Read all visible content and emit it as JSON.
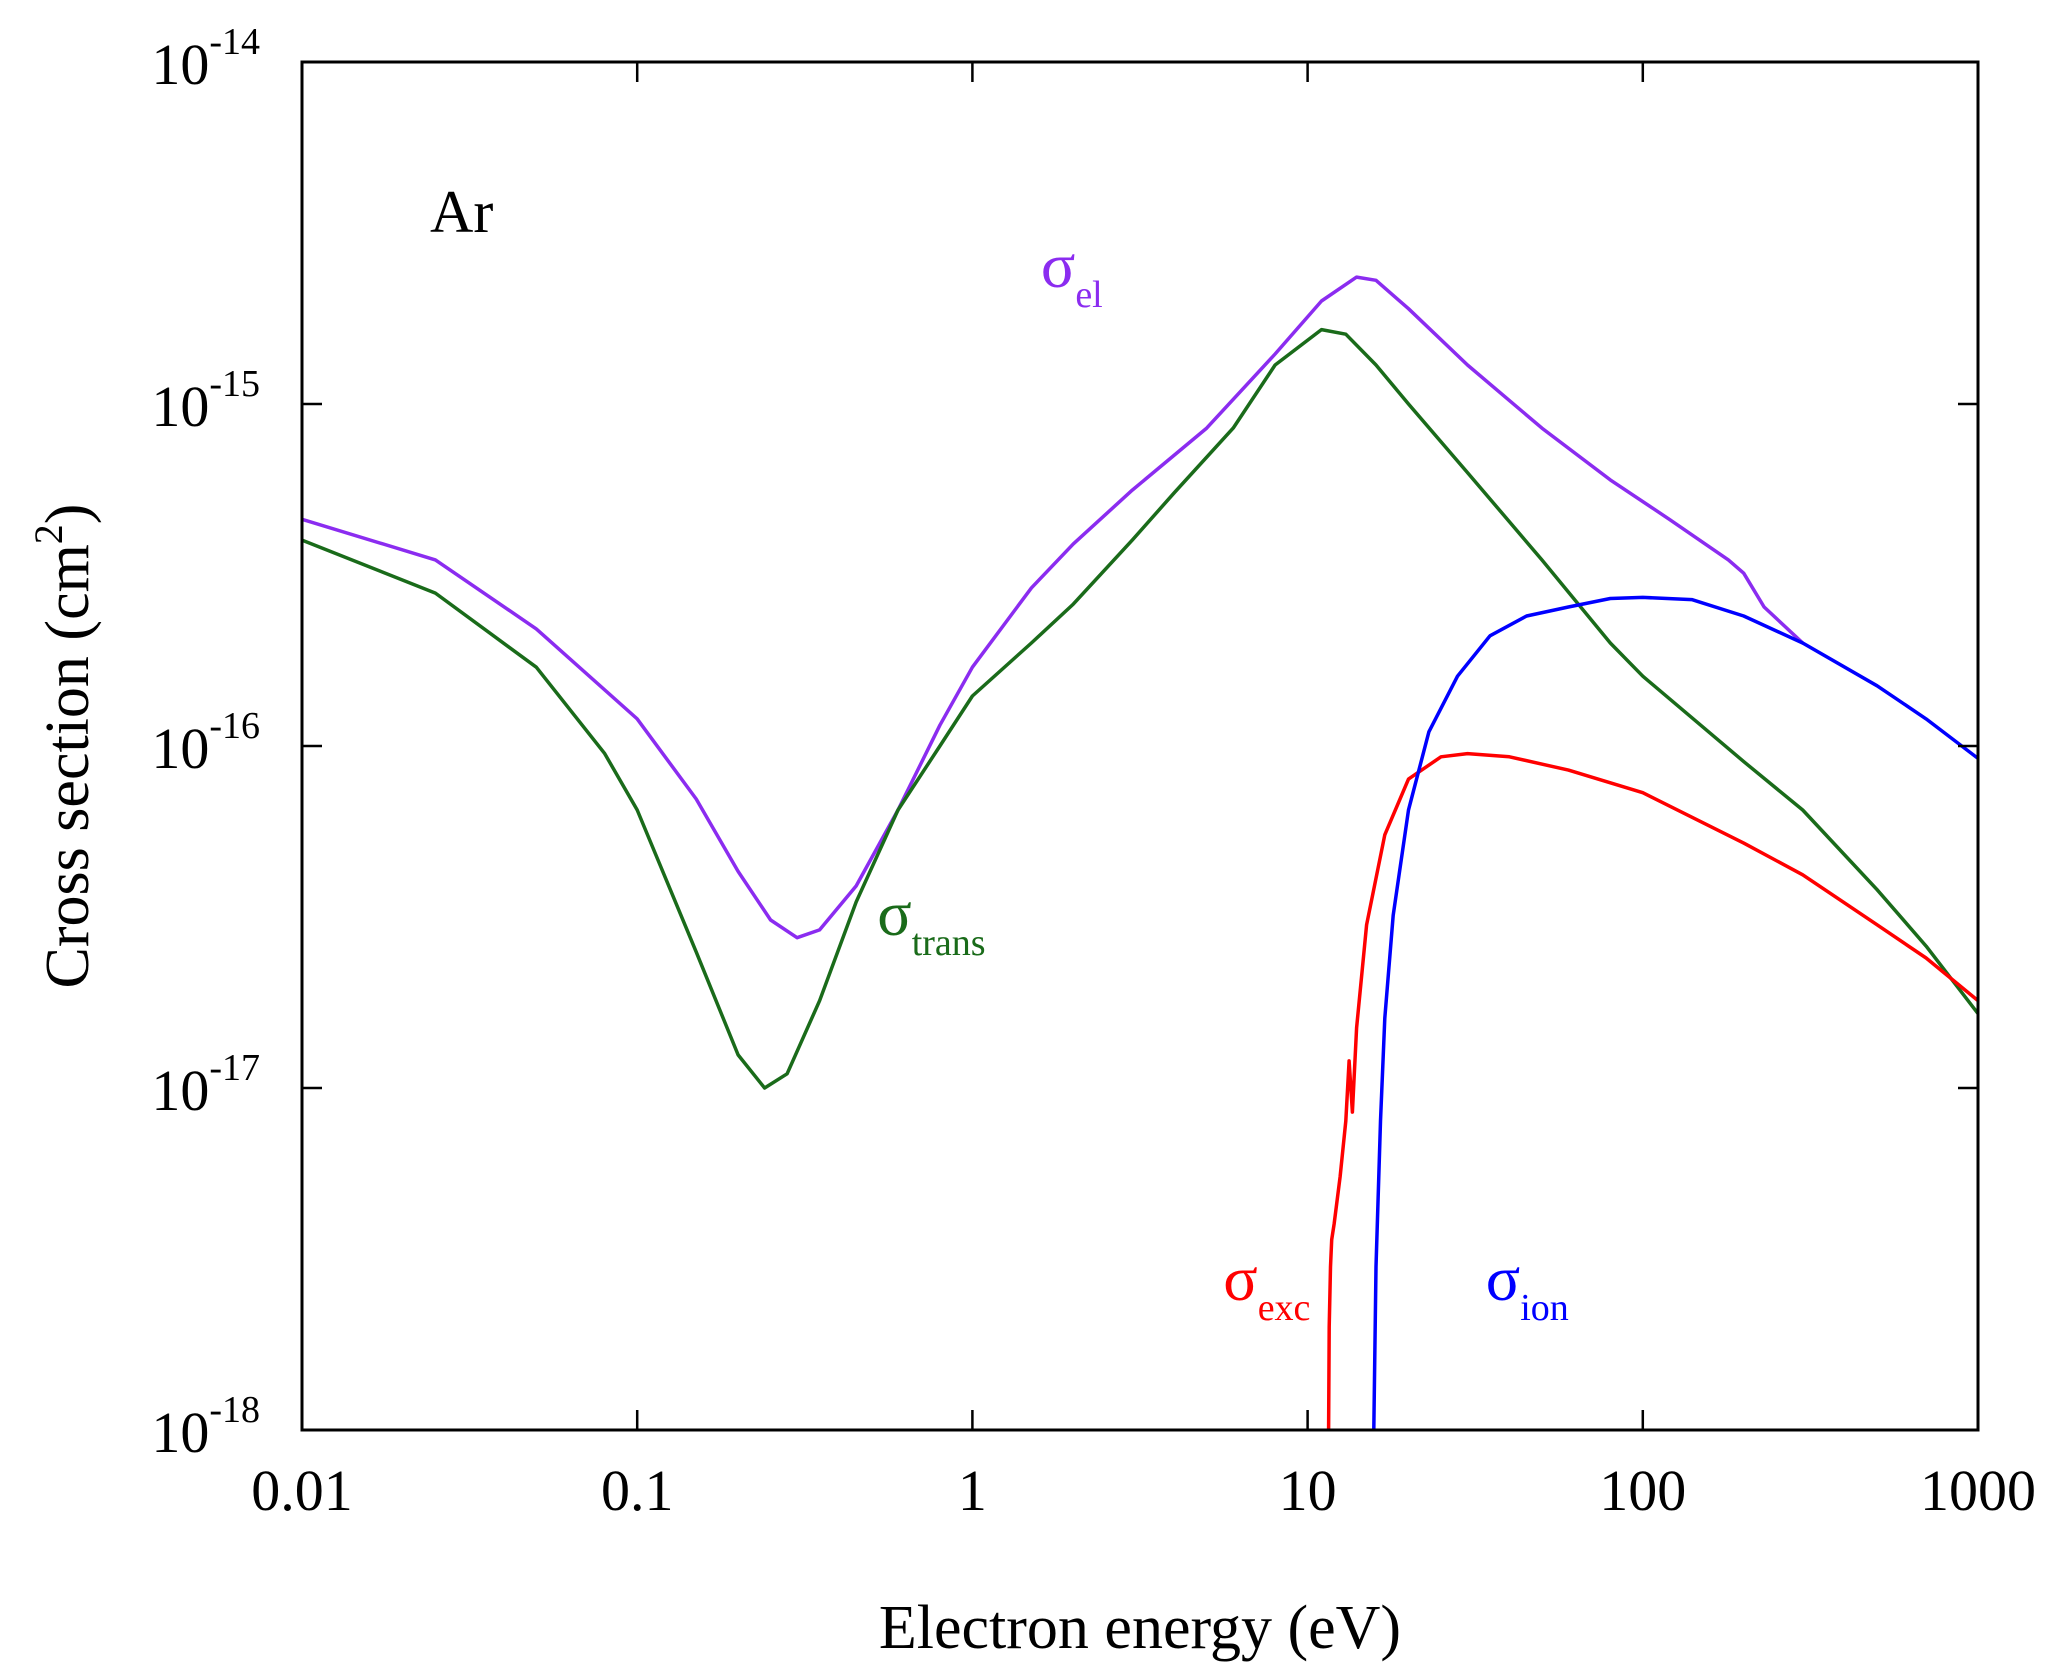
{
  "chart_data": {
    "type": "line",
    "title": "",
    "annotation": "Ar",
    "xlabel": "Electron energy (eV)",
    "ylabel": {
      "main": "Cross section (cm",
      "sup": "2",
      "close": ")"
    },
    "xscale": "log",
    "yscale": "log",
    "xlim": [
      0.01,
      1000
    ],
    "ylim": [
      1e-18,
      1e-14
    ],
    "grid": false,
    "x_ticks": [
      {
        "value": 0.01,
        "label": "0.01"
      },
      {
        "value": 0.1,
        "label": "0.1"
      },
      {
        "value": 1,
        "label": "1"
      },
      {
        "value": 10,
        "label": "10"
      },
      {
        "value": 100,
        "label": "100"
      },
      {
        "value": 1000,
        "label": "1000"
      }
    ],
    "y_ticks": [
      {
        "value": 1e-18,
        "base": "10",
        "exp": "-18"
      },
      {
        "value": 1e-17,
        "base": "10",
        "exp": "-17"
      },
      {
        "value": 1e-16,
        "base": "10",
        "exp": "-16"
      },
      {
        "value": 1e-15,
        "base": "10",
        "exp": "-15"
      },
      {
        "value": 1e-14,
        "base": "10",
        "exp": "-14"
      }
    ],
    "series": [
      {
        "name": "el",
        "symbol": "σ",
        "subscript": "el",
        "color": "#8b2cf0",
        "label_anchor": [
          1.6,
          2.2e-15
        ],
        "points": [
          [
            0.01,
            4.6e-16
          ],
          [
            0.025,
            3.5e-16
          ],
          [
            0.05,
            2.2e-16
          ],
          [
            0.1,
            1.2e-16
          ],
          [
            0.15,
            7e-17
          ],
          [
            0.2,
            4.3e-17
          ],
          [
            0.25,
            3.1e-17
          ],
          [
            0.3,
            2.75e-17
          ],
          [
            0.35,
            2.9e-17
          ],
          [
            0.45,
            3.9e-17
          ],
          [
            0.6,
            6.5e-17
          ],
          [
            0.8,
            1.15e-16
          ],
          [
            1.0,
            1.7e-16
          ],
          [
            1.5,
            2.9e-16
          ],
          [
            2,
            3.9e-16
          ],
          [
            3,
            5.6e-16
          ],
          [
            5,
            8.5e-16
          ],
          [
            8,
            1.4e-15
          ],
          [
            11,
            2e-15
          ],
          [
            14,
            2.35e-15
          ],
          [
            16,
            2.3e-15
          ],
          [
            20,
            1.9e-15
          ],
          [
            30,
            1.3e-15
          ],
          [
            50,
            8.5e-16
          ],
          [
            80,
            6e-16
          ],
          [
            120,
            4.6e-16
          ],
          [
            180,
            3.5e-16
          ],
          [
            200,
            3.2e-16
          ],
          [
            230,
            2.55e-16
          ],
          [
            300,
            2e-16
          ]
        ]
      },
      {
        "name": "trans",
        "symbol": "σ",
        "subscript": "trans",
        "color": "#1a6b1a",
        "label_anchor": [
          0.52,
          2.8e-17
        ],
        "points": [
          [
            0.01,
            4e-16
          ],
          [
            0.025,
            2.8e-16
          ],
          [
            0.05,
            1.7e-16
          ],
          [
            0.08,
            9.5e-17
          ],
          [
            0.1,
            6.5e-17
          ],
          [
            0.15,
            2.5e-17
          ],
          [
            0.2,
            1.25e-17
          ],
          [
            0.24,
            1e-17
          ],
          [
            0.28,
            1.1e-17
          ],
          [
            0.35,
            1.8e-17
          ],
          [
            0.45,
            3.5e-17
          ],
          [
            0.6,
            6.5e-17
          ],
          [
            0.8,
            1e-16
          ],
          [
            1.0,
            1.4e-16
          ],
          [
            1.5,
            2e-16
          ],
          [
            2,
            2.6e-16
          ],
          [
            3,
            4e-16
          ],
          [
            4,
            5.5e-16
          ],
          [
            6,
            8.5e-16
          ],
          [
            8,
            1.3e-15
          ],
          [
            11,
            1.65e-15
          ],
          [
            13,
            1.6e-15
          ],
          [
            16,
            1.3e-15
          ],
          [
            20,
            1e-15
          ],
          [
            30,
            6.3e-16
          ],
          [
            50,
            3.5e-16
          ],
          [
            80,
            2e-16
          ],
          [
            100,
            1.6e-16
          ],
          [
            200,
            9e-17
          ],
          [
            300,
            6.5e-17
          ],
          [
            500,
            3.8e-17
          ],
          [
            700,
            2.6e-17
          ],
          [
            1000,
            1.65e-17
          ]
        ]
      },
      {
        "name": "exc",
        "symbol": "σ",
        "subscript": "exc",
        "color": "#ff0000",
        "label_anchor": [
          5.6,
          2.4e-18
        ],
        "points": [
          [
            11.55,
            1e-18
          ],
          [
            11.6,
            2e-18
          ],
          [
            11.7,
            3e-18
          ],
          [
            11.8,
            3.6e-18
          ],
          [
            12.0,
            4e-18
          ],
          [
            12.5,
            5.5e-18
          ],
          [
            13.0,
            8e-18
          ],
          [
            13.3,
            1.2e-17
          ],
          [
            13.6,
            8.5e-18
          ],
          [
            14.0,
            1.5e-17
          ],
          [
            15,
            3e-17
          ],
          [
            17,
            5.5e-17
          ],
          [
            20,
            8e-17
          ],
          [
            25,
            9.3e-17
          ],
          [
            30,
            9.5e-17
          ],
          [
            40,
            9.3e-17
          ],
          [
            60,
            8.5e-17
          ],
          [
            100,
            7.3e-17
          ],
          [
            200,
            5.2e-17
          ],
          [
            300,
            4.2e-17
          ],
          [
            500,
            3e-17
          ],
          [
            700,
            2.4e-17
          ],
          [
            1000,
            1.8e-17
          ]
        ]
      },
      {
        "name": "ion",
        "symbol": "σ",
        "subscript": "ion",
        "color": "#0000ff",
        "label_anchor": [
          34,
          2.4e-18
        ],
        "points": [
          [
            15.76,
            1e-18
          ],
          [
            16,
            3e-18
          ],
          [
            16.5,
            8e-18
          ],
          [
            17,
            1.6e-17
          ],
          [
            18,
            3.2e-17
          ],
          [
            20,
            6.5e-17
          ],
          [
            23,
            1.1e-16
          ],
          [
            28,
            1.6e-16
          ],
          [
            35,
            2.1e-16
          ],
          [
            45,
            2.4e-16
          ],
          [
            60,
            2.55e-16
          ],
          [
            80,
            2.7e-16
          ],
          [
            100,
            2.72e-16
          ],
          [
            140,
            2.68e-16
          ],
          [
            200,
            2.4e-16
          ],
          [
            300,
            2e-16
          ],
          [
            500,
            1.5e-16
          ],
          [
            700,
            1.2e-16
          ],
          [
            1000,
            9.2e-17
          ]
        ]
      }
    ]
  }
}
